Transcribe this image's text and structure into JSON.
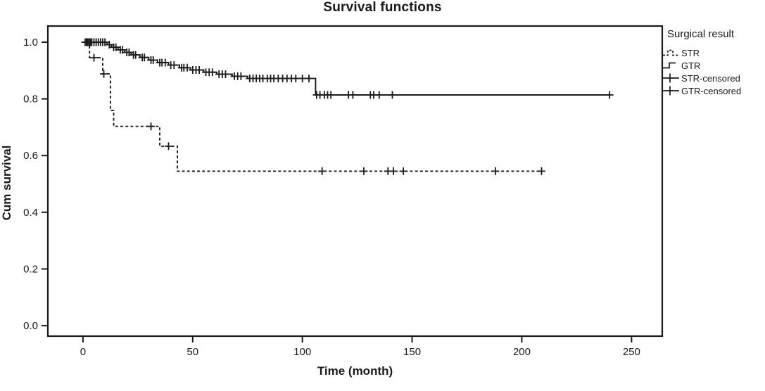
{
  "chart": {
    "title": "Survival functions",
    "xlabel": "Time (month)",
    "ylabel": "Cum survival"
  },
  "legend": {
    "title": "Surgical result",
    "items": [
      {
        "label": "STR",
        "symbol": "dashed-step-line"
      },
      {
        "label": "GTR",
        "symbol": "solid-step-line"
      },
      {
        "label": "STR-censored",
        "symbol": "plus-on-line"
      },
      {
        "label": "GTR-censored",
        "symbol": "plus-on-line"
      }
    ]
  },
  "chart_data": {
    "type": "line",
    "subtype": "kaplan-meier-step",
    "title": "Survival functions",
    "xlabel": "Time (month)",
    "ylabel": "Cum survival",
    "xlim": [
      -16,
      264
    ],
    "ylim": [
      -0.037,
      1.057
    ],
    "grid": false,
    "legend_position": "right",
    "line_color": "#1a1a1a",
    "xticks": [
      {
        "value": 0,
        "label": "0"
      },
      {
        "value": 50,
        "label": "50"
      },
      {
        "value": 100,
        "label": "100"
      },
      {
        "value": 150,
        "label": "150"
      },
      {
        "value": 200,
        "label": "200"
      },
      {
        "value": 250,
        "label": "250"
      }
    ],
    "yticks": [
      {
        "value": 0.0,
        "label": "0.0"
      },
      {
        "value": 0.2,
        "label": "0.2"
      },
      {
        "value": 0.4,
        "label": "0.4"
      },
      {
        "value": 0.6,
        "label": "0.6"
      },
      {
        "value": 0.8,
        "label": "0.8"
      },
      {
        "value": 1.0,
        "label": "1.0"
      }
    ],
    "series": [
      {
        "name": "STR",
        "style": "dashed",
        "start": [
          0,
          1.0
        ],
        "drops": [
          [
            3,
            0.945
          ],
          [
            9,
            0.888
          ],
          [
            12.5,
            0.759
          ],
          [
            14,
            0.703
          ],
          [
            35,
            0.633
          ],
          [
            43,
            0.545
          ]
        ],
        "end": 209,
        "censored": [
          [
            5,
            0.945
          ],
          [
            9.5,
            0.888
          ],
          [
            31,
            0.703
          ],
          [
            39,
            0.633
          ],
          [
            109,
            0.545
          ],
          [
            128,
            0.545
          ],
          [
            139,
            0.545
          ],
          [
            141.5,
            0.545
          ],
          [
            146,
            0.545
          ],
          [
            188,
            0.545
          ],
          [
            209,
            0.545
          ]
        ]
      },
      {
        "name": "GTR",
        "style": "solid",
        "start": [
          0,
          1.0
        ],
        "drops": [
          [
            11,
            0.991
          ],
          [
            13,
            0.982
          ],
          [
            16,
            0.973
          ],
          [
            19,
            0.964
          ],
          [
            22,
            0.955
          ],
          [
            26,
            0.946
          ],
          [
            30,
            0.937
          ],
          [
            34,
            0.928
          ],
          [
            39,
            0.919
          ],
          [
            44,
            0.91
          ],
          [
            49,
            0.902
          ],
          [
            55,
            0.894
          ],
          [
            61,
            0.887
          ],
          [
            68,
            0.88
          ],
          [
            75,
            0.872
          ],
          [
            106,
            0.814
          ]
        ],
        "end": 240,
        "censored": [
          [
            1,
            1.0
          ],
          [
            1.6,
            1.0
          ],
          [
            2.2,
            1.0
          ],
          [
            2.8,
            1.0
          ],
          [
            3.4,
            1.0
          ],
          [
            4,
            1.0
          ],
          [
            5,
            1.0
          ],
          [
            6,
            1.0
          ],
          [
            7,
            1.0
          ],
          [
            8,
            1.0
          ],
          [
            9,
            1.0
          ],
          [
            10,
            1.0
          ],
          [
            12,
            0.991
          ],
          [
            14,
            0.982
          ],
          [
            15,
            0.982
          ],
          [
            17,
            0.973
          ],
          [
            18,
            0.973
          ],
          [
            20,
            0.964
          ],
          [
            21,
            0.964
          ],
          [
            23,
            0.955
          ],
          [
            24,
            0.955
          ],
          [
            27,
            0.946
          ],
          [
            28,
            0.946
          ],
          [
            31,
            0.937
          ],
          [
            32,
            0.937
          ],
          [
            35,
            0.928
          ],
          [
            36,
            0.928
          ],
          [
            37.5,
            0.928
          ],
          [
            40,
            0.919
          ],
          [
            41.5,
            0.919
          ],
          [
            45,
            0.91
          ],
          [
            46,
            0.91
          ],
          [
            47.5,
            0.91
          ],
          [
            50,
            0.902
          ],
          [
            51.5,
            0.902
          ],
          [
            53,
            0.902
          ],
          [
            56,
            0.894
          ],
          [
            57.5,
            0.894
          ],
          [
            59,
            0.894
          ],
          [
            62,
            0.887
          ],
          [
            63.5,
            0.887
          ],
          [
            65,
            0.887
          ],
          [
            69,
            0.88
          ],
          [
            70.5,
            0.88
          ],
          [
            72,
            0.88
          ],
          [
            76,
            0.872
          ],
          [
            77.5,
            0.872
          ],
          [
            79,
            0.872
          ],
          [
            80.5,
            0.872
          ],
          [
            82,
            0.872
          ],
          [
            84,
            0.872
          ],
          [
            85.5,
            0.872
          ],
          [
            87,
            0.872
          ],
          [
            89,
            0.872
          ],
          [
            91,
            0.872
          ],
          [
            93,
            0.872
          ],
          [
            95,
            0.872
          ],
          [
            97,
            0.872
          ],
          [
            100,
            0.872
          ],
          [
            103,
            0.872
          ],
          [
            106.5,
            0.814
          ],
          [
            108,
            0.814
          ],
          [
            110,
            0.814
          ],
          [
            111.5,
            0.814
          ],
          [
            113,
            0.814
          ],
          [
            121,
            0.814
          ],
          [
            123,
            0.814
          ],
          [
            131,
            0.814
          ],
          [
            132.5,
            0.814
          ],
          [
            135,
            0.814
          ],
          [
            141,
            0.814
          ],
          [
            240,
            0.814
          ]
        ]
      }
    ]
  }
}
